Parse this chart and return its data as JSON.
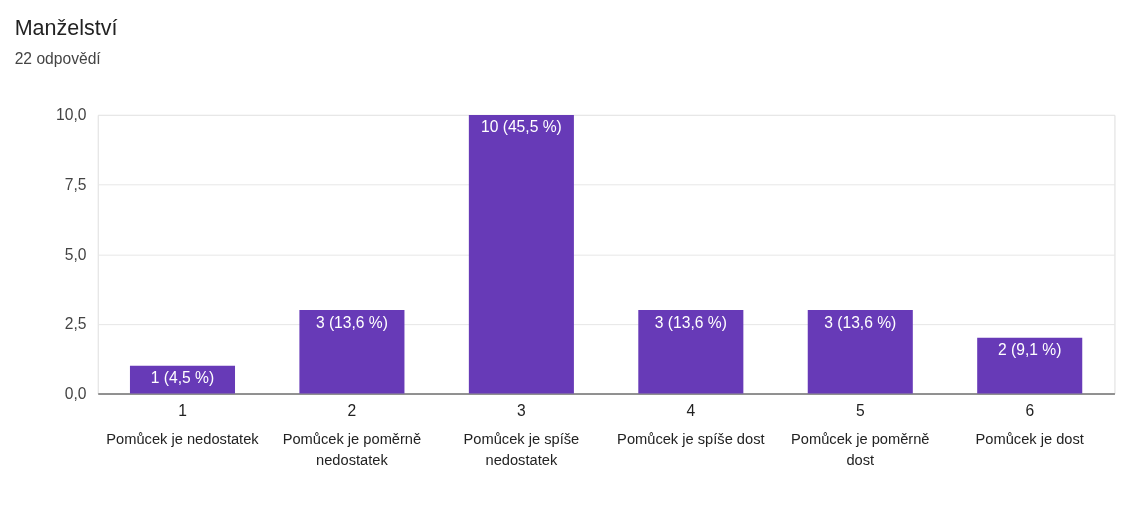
{
  "chart_data": {
    "type": "bar",
    "title": "Manželství",
    "subtitle": "22 odpovědí",
    "categories": [
      "1",
      "2",
      "3",
      "4",
      "5",
      "6"
    ],
    "values": [
      1,
      3,
      10,
      3,
      3,
      2
    ],
    "value_labels": [
      "1 (4,5 %)",
      "3 (13,6 %)",
      "10 (45,5 %)",
      "3 (13,6 %)",
      "3 (13,6 %)",
      "2 (9,1 %)"
    ],
    "color": "#673ab7",
    "ylim": [
      0,
      10
    ],
    "yticks": [
      {
        "value": 0,
        "label": "0,0"
      },
      {
        "value": 2.5,
        "label": "2,5"
      },
      {
        "value": 5,
        "label": "5,0"
      },
      {
        "value": 7.5,
        "label": "7,5"
      },
      {
        "value": 10,
        "label": "10,0"
      }
    ],
    "grid": "y",
    "annotations": [
      "Pomůcek je nedostatek",
      "Pomůcek je poměrně nedostatek",
      "Pomůcek je spíše nedostatek",
      "Pomůcek je spíše dost",
      "Pomůcek je poměrně dost",
      "Pomůcek je dost"
    ]
  }
}
